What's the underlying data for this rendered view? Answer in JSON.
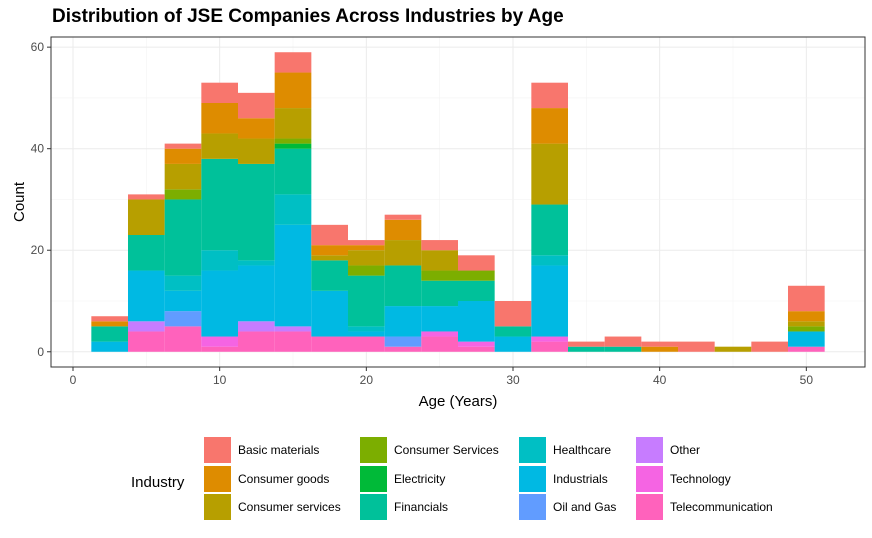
{
  "chart_data": {
    "type": "bar",
    "subtype": "stacked-histogram",
    "title": "Distribution of JSE Companies Across Industries by Age",
    "xlabel": "Age (Years)",
    "ylabel": "Count",
    "xlim": [
      -1.5,
      54
    ],
    "ylim": [
      -3,
      62
    ],
    "x_ticks": [
      0,
      10,
      20,
      30,
      40,
      50
    ],
    "y_ticks": [
      0,
      20,
      40,
      60
    ],
    "grid": true,
    "legend_title": "Industry",
    "legend_position": "bottom",
    "bin_width": 2.5,
    "bin_starts": [
      1.25,
      3.75,
      6.25,
      8.75,
      11.25,
      13.75,
      16.25,
      18.75,
      21.25,
      23.75,
      26.25,
      28.75,
      31.25,
      33.75,
      36.25,
      38.75,
      41.25,
      43.75,
      46.25,
      48.75
    ],
    "series": [
      {
        "name": "Telecommunication",
        "color": "#FF62BC",
        "values": [
          0,
          4,
          5,
          1,
          4,
          4,
          3,
          3,
          1,
          3,
          1,
          0,
          2,
          0,
          0,
          0,
          0,
          0,
          0,
          1
        ]
      },
      {
        "name": "Technology",
        "color": "#F564E3",
        "values": [
          0,
          0,
          0,
          2,
          0,
          0,
          0,
          0,
          0,
          1,
          1,
          0,
          1,
          0,
          0,
          0,
          0,
          0,
          0,
          0
        ]
      },
      {
        "name": "Other",
        "color": "#C77CFF",
        "values": [
          0,
          2,
          0,
          0,
          2,
          1,
          0,
          0,
          0,
          0,
          0,
          0,
          0,
          0,
          0,
          0,
          0,
          0,
          0,
          0
        ]
      },
      {
        "name": "Oil and Gas",
        "color": "#619CFF",
        "values": [
          0,
          0,
          3,
          0,
          0,
          0,
          0,
          0,
          2,
          0,
          0,
          0,
          0,
          0,
          0,
          0,
          0,
          0,
          0,
          0
        ]
      },
      {
        "name": "Industrials",
        "color": "#00B9E3",
        "values": [
          2,
          10,
          4,
          13,
          11,
          20,
          9,
          1,
          6,
          5,
          8,
          3,
          14,
          0,
          0,
          0,
          0,
          0,
          0,
          3
        ]
      },
      {
        "name": "Healthcare",
        "color": "#00BFC4",
        "values": [
          0,
          0,
          3,
          4,
          1,
          6,
          0,
          1,
          0,
          0,
          0,
          0,
          2,
          0,
          0,
          0,
          0,
          0,
          0,
          0
        ]
      },
      {
        "name": "Financials",
        "color": "#00C19A",
        "values": [
          3,
          7,
          15,
          18,
          19,
          9,
          6,
          10,
          8,
          5,
          4,
          2,
          10,
          1,
          1,
          0,
          0,
          0,
          0,
          0
        ]
      },
      {
        "name": "Electricity",
        "color": "#00BA38",
        "values": [
          0,
          0,
          0,
          0,
          0,
          1,
          0,
          0,
          0,
          0,
          0,
          0,
          0,
          0,
          0,
          0,
          0,
          0,
          0,
          0
        ]
      },
      {
        "name": "Consumer Services",
        "color": "#7CAE00",
        "values": [
          0,
          0,
          2,
          0,
          0,
          1,
          0,
          2,
          0,
          2,
          2,
          0,
          0,
          0,
          0,
          0,
          0,
          0,
          0,
          1
        ]
      },
      {
        "name": "Consumer services",
        "color": "#B79F00",
        "values": [
          0,
          7,
          5,
          5,
          5,
          6,
          1,
          3,
          5,
          4,
          0,
          0,
          12,
          0,
          0,
          0,
          0,
          1,
          0,
          1
        ]
      },
      {
        "name": "Consumer goods",
        "color": "#DE8C00",
        "values": [
          1,
          0,
          3,
          6,
          4,
          7,
          2,
          1,
          4,
          0,
          0,
          0,
          7,
          0,
          0,
          1,
          0,
          0,
          0,
          2
        ]
      },
      {
        "name": "Basic materials",
        "color": "#F8766D",
        "values": [
          1,
          1,
          1,
          4,
          5,
          4,
          4,
          1,
          1,
          2,
          3,
          5,
          5,
          1,
          2,
          1,
          2,
          0,
          2,
          5
        ]
      }
    ]
  },
  "legend": {
    "title": "Industry",
    "columns": [
      [
        "Basic materials",
        "Consumer goods",
        "Consumer services"
      ],
      [
        "Consumer Services",
        "Electricity",
        "Financials"
      ],
      [
        "Healthcare",
        "Industrials",
        "Oil and Gas"
      ],
      [
        "Other",
        "Technology",
        "Telecommunication"
      ]
    ]
  }
}
